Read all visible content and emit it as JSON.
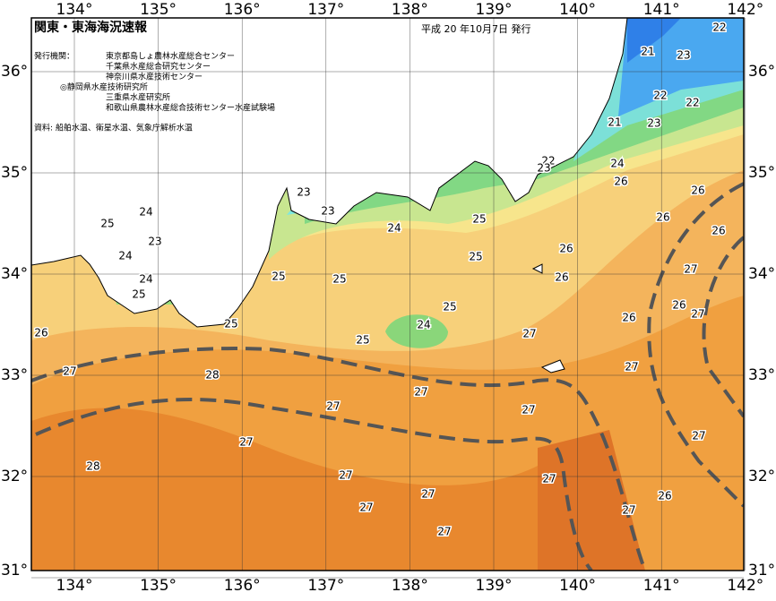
{
  "header": {
    "title": "関東・東海海況速報",
    "date": "平成 20 年10月7日 発行",
    "issuer_label": "発行機関：",
    "issuers": [
      "東京都島しょ農林水産総合センター",
      "千葉県水産総合研究センター",
      "神奈川県水産技術センター",
      "◎静岡県水産技術研究所",
      "三重県水産研究所",
      "和歌山県農林水産総合技術センター水産試験場"
    ],
    "source": "資料: 船舶水温、衛星水温、気象庁解析水温"
  },
  "axes": {
    "lon_ticks": [
      "134°",
      "135°",
      "136°",
      "137°",
      "138°",
      "139°",
      "140°",
      "141°",
      "142°"
    ],
    "lat_ticks": [
      "36°",
      "35°",
      "34°",
      "33°",
      "32°",
      "31°"
    ]
  },
  "contour_labels": [
    22,
    21,
    23,
    22,
    22,
    21,
    23,
    22,
    23,
    24,
    26,
    26,
    23,
    23,
    24,
    25,
    26,
    25,
    24,
    23,
    26,
    26,
    25,
    24,
    27,
    25,
    25,
    26,
    24,
    25,
    26,
    27,
    25,
    26,
    25,
    24,
    27,
    25,
    26,
    27,
    28,
    27,
    27,
    27,
    27,
    27,
    27,
    28,
    27,
    27,
    26,
    27,
    27,
    27,
    27
  ]
}
